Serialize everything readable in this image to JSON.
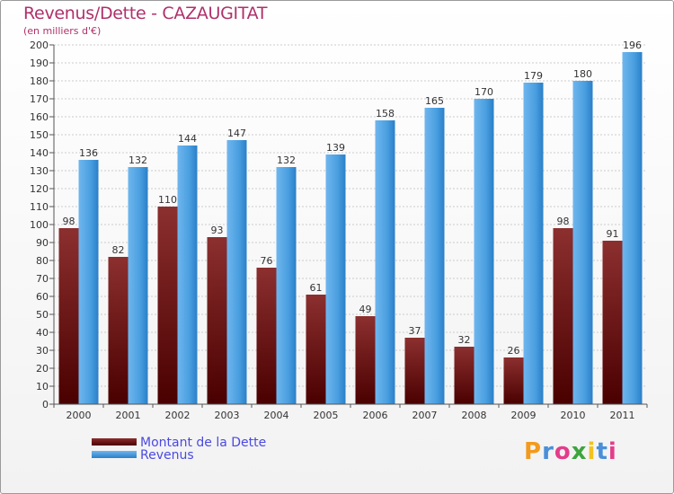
{
  "title": "Revenus/Dette - CAZAUGITAT",
  "subtitle": "(en milliers d'€)",
  "chart_data": {
    "type": "bar",
    "categories": [
      "2000",
      "2001",
      "2002",
      "2003",
      "2004",
      "2005",
      "2006",
      "2007",
      "2008",
      "2009",
      "2010",
      "2011"
    ],
    "series": [
      {
        "name": "Montant de la Dette",
        "color": "#7a1f1f",
        "values": [
          98,
          82,
          110,
          93,
          76,
          61,
          49,
          37,
          32,
          26,
          98,
          91
        ]
      },
      {
        "name": "Revenus",
        "color": "#4a9fe0",
        "values": [
          136,
          132,
          144,
          147,
          132,
          139,
          158,
          165,
          170,
          179,
          180,
          196
        ]
      }
    ],
    "ylim": [
      0,
      200
    ],
    "ytick_step": 10,
    "grid": true,
    "legend_position": "bottom-left"
  },
  "legend": {
    "dette_label": "Montant de la Dette",
    "revenus_label": "Revenus"
  },
  "logo": {
    "letters": [
      "P",
      "r",
      "o",
      "x",
      "i",
      "t",
      "i"
    ],
    "colors": [
      "#f29a1d",
      "#4a8fd8",
      "#e43c8a",
      "#3da53d",
      "#f2c21d",
      "#4a8fd8",
      "#e43c8a"
    ]
  }
}
